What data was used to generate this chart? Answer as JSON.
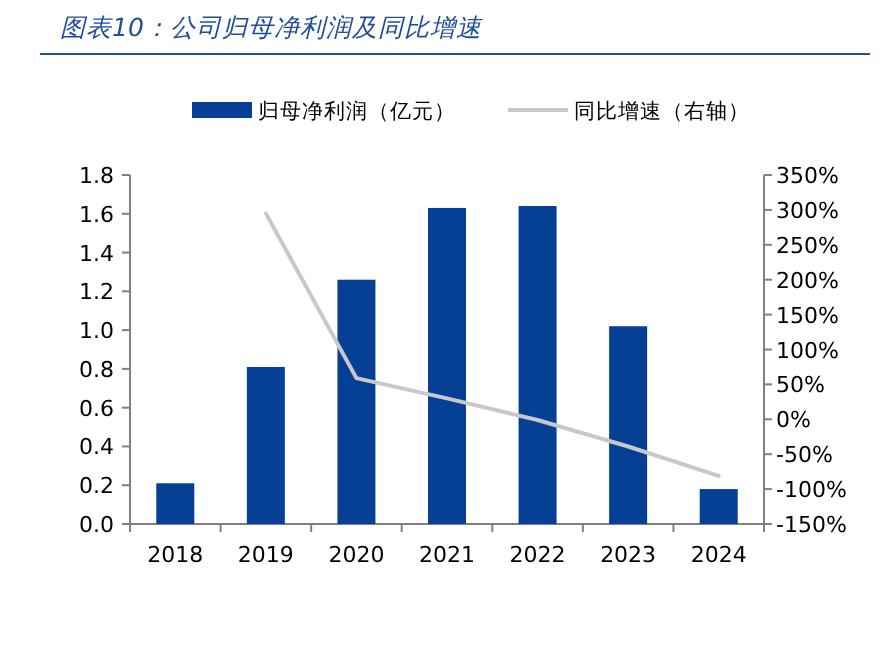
{
  "chart_data": {
    "type": "bar",
    "title": "图表10：公司归母净利润及同比增速",
    "categories": [
      "2018",
      "2019",
      "2020",
      "2021",
      "2022",
      "2023",
      "2024"
    ],
    "series": [
      {
        "name": "归母净利润（亿元）",
        "color": "#053f96",
        "values": [
          0.21,
          0.81,
          1.26,
          1.63,
          1.64,
          1.02,
          0.18
        ]
      },
      {
        "name": "同比增速（右轴）",
        "type": "line",
        "axis": "y2",
        "color": "#c8c8c8",
        "values": [
          null,
          295,
          59,
          30,
          -1,
          -39,
          -81
        ]
      }
    ],
    "ylim": [
      0,
      1.8
    ],
    "yticks": [
      {
        "value": 0,
        "label": "0.0"
      },
      0.2,
      0.4,
      0.6,
      0.8,
      {
        "value": 1,
        "label": "1.0"
      },
      1.2,
      1.4,
      1.6,
      1.8
    ],
    "y2lim": [
      -150,
      350
    ],
    "y2ticks": [
      {
        "value": -150,
        "label": "-150%"
      },
      {
        "value": -100,
        "label": "-100%"
      },
      {
        "value": -50,
        "label": "-50%"
      },
      {
        "value": 0,
        "label": "0%"
      },
      {
        "value": 50,
        "label": "50%"
      },
      {
        "value": 100,
        "label": "100%"
      },
      {
        "value": 150,
        "label": "150%"
      },
      {
        "value": 200,
        "label": "200%"
      },
      {
        "value": 250,
        "label": "250%"
      },
      {
        "value": 300,
        "label": "300%"
      },
      {
        "value": 350,
        "label": "350%"
      }
    ],
    "legend": "top"
  }
}
